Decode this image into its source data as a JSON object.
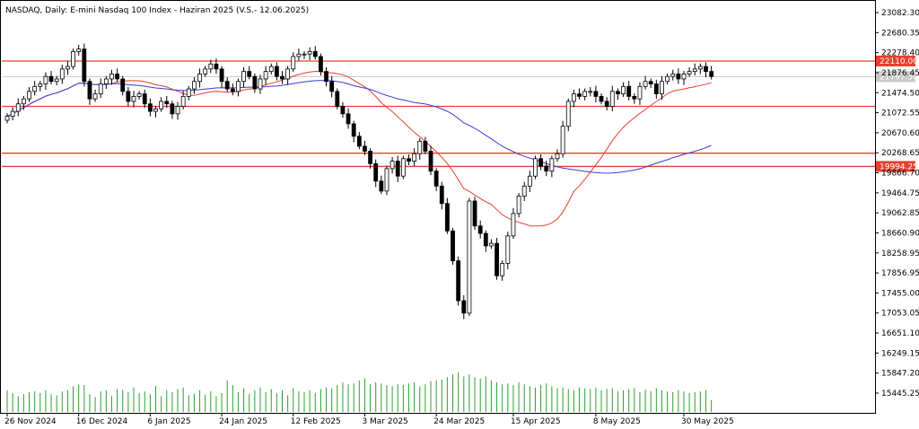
{
  "chart_data": {
    "type": "candlestick",
    "title": "NASDAQ, Daily:  E-mini Nasdaq 100 Index - Haziran 2025 (V.S.- 12.06.2025)",
    "y_ticks": [
      "23082.30",
      "22680.35",
      "22278.40",
      "21876.45",
      "21474.50",
      "21072.55",
      "20670.60",
      "20268.65",
      "19866.70",
      "19464.75",
      "19062.85",
      "18660.90",
      "18258.95",
      "17856.95",
      "17455.00",
      "17053.05",
      "16651.10",
      "16249.15",
      "15847.20",
      "15445.25"
    ],
    "ylim": [
      15300,
      23200
    ],
    "x_ticks": [
      {
        "label": "26 Nov 2024",
        "index": 0
      },
      {
        "label": "16 Dec 2024",
        "index": 13
      },
      {
        "label": "6 Jan 2025",
        "index": 26
      },
      {
        "label": "24 Jan 2025",
        "index": 39
      },
      {
        "label": "12 Feb 2025",
        "index": 52
      },
      {
        "label": "3 Mar 2025",
        "index": 65
      },
      {
        "label": "24 Mar 2025",
        "index": 78
      },
      {
        "label": "15 Apr 2025",
        "index": 92
      },
      {
        "label": "8 May 2025",
        "index": 107
      },
      {
        "label": "30 May 2025",
        "index": 123
      }
    ],
    "horizontal_levels": [
      {
        "value": 22110.0,
        "label": "22110.00",
        "color": "#e8402e"
      },
      {
        "value": 21200.0,
        "label": "",
        "color": "#e8402e"
      },
      {
        "value": 20260.0,
        "label": "",
        "color": "#e8402e"
      },
      {
        "value": 19994.25,
        "label": "19994.25",
        "color": "#e8402e"
      }
    ],
    "current_price": {
      "value": 21797.5,
      "label": "21797.50"
    },
    "closes": [
      21000,
      21100,
      21250,
      21350,
      21500,
      21600,
      21650,
      21800,
      21700,
      21750,
      21950,
      22000,
      22300,
      22350,
      21700,
      21350,
      21450,
      21650,
      21750,
      21850,
      21750,
      21500,
      21300,
      21400,
      21450,
      21250,
      21100,
      21150,
      21300,
      21250,
      21050,
      21200,
      21400,
      21550,
      21700,
      21850,
      21950,
      22050,
      21950,
      21700,
      21550,
      21500,
      21700,
      21900,
      21800,
      21550,
      21750,
      21900,
      22000,
      21800,
      21750,
      21950,
      22200,
      22250,
      22250,
      22300,
      22200,
      21900,
      21700,
      21500,
      21200,
      21050,
      20850,
      20600,
      20400,
      20300,
      20050,
      19700,
      19500,
      19950,
      20100,
      19800,
      20150,
      20100,
      20250,
      20500,
      20300,
      19900,
      19600,
      19250,
      18700,
      18100,
      17300,
      17050,
      19300,
      18800,
      18650,
      18400,
      18450,
      17800,
      18050,
      18600,
      19050,
      19400,
      19600,
      19800,
      20150,
      20000,
      19900,
      20150,
      20250,
      20800,
      21300,
      21450,
      21400,
      21500,
      21500,
      21400,
      21300,
      21200,
      21500,
      21450,
      21600,
      21400,
      21350,
      21600,
      21700,
      21650,
      21450,
      21700,
      21800,
      21850,
      21750,
      21850,
      21900,
      21950,
      22000,
      21900,
      21800
    ],
    "volume": [
      0.55,
      0.48,
      0.4,
      0.45,
      0.5,
      0.52,
      0.48,
      0.55,
      0.45,
      0.42,
      0.52,
      0.55,
      0.65,
      0.7,
      0.68,
      0.45,
      0.38,
      0.52,
      0.55,
      0.4,
      0.58,
      0.56,
      0.5,
      0.62,
      0.48,
      0.52,
      0.45,
      0.66,
      0.4,
      0.55,
      0.5,
      0.58,
      0.62,
      0.42,
      0.46,
      0.55,
      0.44,
      0.52,
      0.4,
      0.48,
      0.8,
      0.68,
      0.5,
      0.6,
      0.45,
      0.55,
      0.62,
      0.5,
      0.58,
      0.48,
      0.55,
      0.42,
      0.6,
      0.52,
      0.5,
      0.55,
      0.48,
      0.58,
      0.62,
      0.6,
      0.68,
      0.75,
      0.7,
      0.72,
      0.8,
      0.85,
      0.7,
      0.75,
      0.72,
      0.68,
      0.65,
      0.7,
      0.68,
      0.72,
      0.75,
      0.65,
      0.7,
      0.78,
      0.8,
      0.82,
      0.88,
      0.95,
      1.0,
      0.9,
      0.95,
      0.88,
      0.85,
      0.9,
      0.8,
      0.75,
      0.7,
      0.72,
      0.68,
      0.75,
      0.7,
      0.65,
      0.62,
      0.68,
      0.72,
      0.65,
      0.6,
      0.62,
      0.58,
      0.55,
      0.62,
      0.6,
      0.58,
      0.62,
      0.55,
      0.58,
      0.6,
      0.52,
      0.55,
      0.58,
      0.6,
      0.5,
      0.56,
      0.52,
      0.6,
      0.55,
      0.52,
      0.5,
      0.55,
      0.52,
      0.48,
      0.5,
      0.52,
      0.55,
      0.3
    ],
    "ma_fast_color": "#e8402e",
    "ma_slow_color": "#3b3bd6",
    "volume_color": "#2e9e2e",
    "candle_color": "#000000",
    "grid": false
  }
}
